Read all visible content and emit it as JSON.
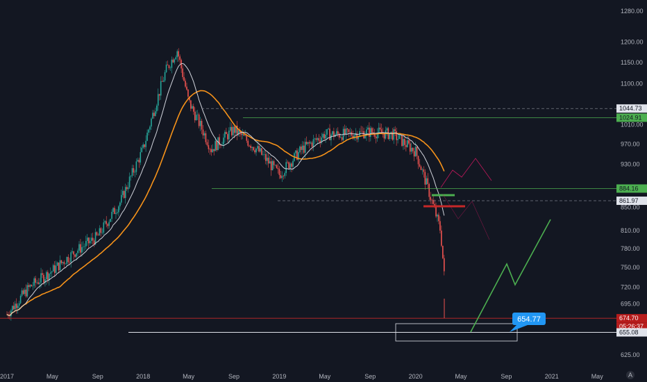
{
  "colors": {
    "background": "#131722",
    "axis_text": "#b2b5be",
    "candle_up": "#26a69a",
    "candle_down": "#ef5350",
    "ma_fast": "#d1d4dc",
    "ma_slow": "#f7931a",
    "level_green": "#4caf50",
    "level_red": "#c62828",
    "projection_green": "#4caf50",
    "projection_red": "#c2185b",
    "callout_blue": "#2196f3",
    "box_white": "#e0e3eb"
  },
  "chart_data": {
    "type": "candlestick",
    "x_tick_labels": [
      "2017",
      "May",
      "Sep",
      "2018",
      "May",
      "Sep",
      "2019",
      "May",
      "Sep",
      "2020",
      "May",
      "Sep",
      "2021",
      "May"
    ],
    "y_tick_labels": [
      "1280.00",
      "1200.00",
      "1150.00",
      "1100.00",
      "1010.00",
      "970.00",
      "930.00",
      "850.00",
      "810.00",
      "780.00",
      "750.00",
      "720.00",
      "695.00",
      "625.00"
    ],
    "y_axis_scale": "log",
    "price_badges": [
      {
        "label": "1044.73",
        "style": "dashed-gray"
      },
      {
        "label": "1024.91",
        "style": "green"
      },
      {
        "label": "884.16",
        "style": "green"
      },
      {
        "label": "861.97",
        "style": "dashed-gray"
      },
      {
        "label": "674.70",
        "style": "red-current"
      },
      {
        "label": "05:26:37",
        "style": "red-countdown"
      },
      {
        "label": "655.08",
        "style": "white"
      }
    ],
    "callout": {
      "label": "654.77"
    },
    "close_series": {
      "x": [
        "2017-01",
        "2017-03",
        "2017-05",
        "2017-07",
        "2017-09",
        "2017-11",
        "2018-01",
        "2018-03",
        "2018-04",
        "2018-05",
        "2018-07",
        "2018-09",
        "2018-11",
        "2019-01",
        "2019-03",
        "2019-05",
        "2019-07",
        "2019-09",
        "2019-11",
        "2020-01",
        "2020-02",
        "2020-03",
        "2020-03"
      ],
      "y": [
        680,
        720,
        745,
        775,
        800,
        860,
        960,
        1130,
        1180,
        1060,
        960,
        1000,
        960,
        910,
        960,
        990,
        990,
        995,
        990,
        955,
        890,
        810,
        720
      ]
    },
    "series": [
      {
        "name": "",
        "role": "moving-average-fast"
      },
      {
        "name": "",
        "role": "moving-average-slow"
      }
    ],
    "grid": false,
    "legend": "none",
    "status_icon": "A"
  }
}
